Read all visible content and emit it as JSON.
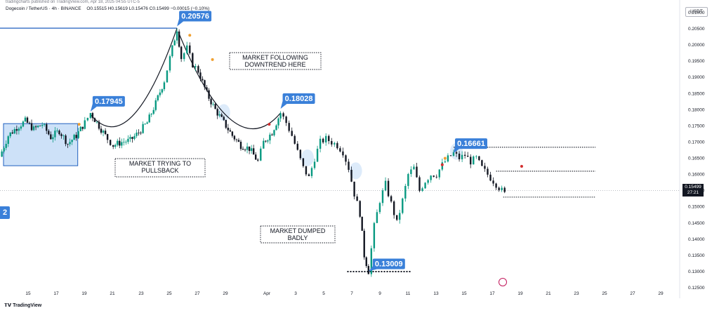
{
  "header": {
    "meta_line": "tradingcharts published on TradingView.com, Apr 18, 2025 04:55 UTC-5",
    "title": "Dogecoin / TetherUS · 4h · BINANCE",
    "ohlc": "O0.15515  H0.15619  L0.15476  C0.15499  −0.00015 (−0.10%)",
    "currency": "USDT"
  },
  "footer": {
    "brand": "TradingView"
  },
  "current_price": {
    "value": "0.15499",
    "countdown": "27:21"
  },
  "left_tag": "2",
  "chart_data": {
    "type": "candlestick",
    "symbol": "Dogecoin / TetherUS",
    "interval": "4h",
    "exchange": "BINANCE",
    "ylim": [
      0.125,
      0.21
    ],
    "y_ticks": [
      "0.21000",
      "0.20500",
      "0.20000",
      "0.19500",
      "0.19000",
      "0.18500",
      "0.18000",
      "0.17500",
      "0.17000",
      "0.16500",
      "0.16000",
      "0.15500",
      "0.15000",
      "0.14500",
      "0.14000",
      "0.13500",
      "0.13000",
      "0.12500"
    ],
    "x_ticks": [
      "15",
      "17",
      "19",
      "21",
      "23",
      "25",
      "27",
      "29",
      "Apr",
      "3",
      "5",
      "7",
      "9",
      "11",
      "13",
      "15",
      "17",
      "19",
      "21",
      "23",
      "25",
      "27",
      "29"
    ],
    "price_path": [
      [
        13.0,
        0.1655
      ],
      [
        13.6,
        0.172
      ],
      [
        14.2,
        0.1745
      ],
      [
        14.8,
        0.1765
      ],
      [
        15.4,
        0.174
      ],
      [
        16.0,
        0.1755
      ],
      [
        16.6,
        0.1715
      ],
      [
        17.2,
        0.1735
      ],
      [
        17.8,
        0.1695
      ],
      [
        18.4,
        0.172
      ],
      [
        19.0,
        0.176
      ],
      [
        19.4,
        0.179
      ],
      [
        20.0,
        0.175
      ],
      [
        20.6,
        0.171
      ],
      [
        21.0,
        0.169
      ],
      [
        21.6,
        0.17
      ],
      [
        22.2,
        0.1705
      ],
      [
        22.8,
        0.173
      ],
      [
        23.4,
        0.176
      ],
      [
        24.0,
        0.182
      ],
      [
        24.6,
        0.189
      ],
      [
        25.0,
        0.196
      ],
      [
        25.5,
        0.205
      ],
      [
        25.8,
        0.196
      ],
      [
        26.2,
        0.199
      ],
      [
        26.6,
        0.194
      ],
      [
        27.0,
        0.192
      ],
      [
        27.6,
        0.185
      ],
      [
        28.2,
        0.18
      ],
      [
        28.8,
        0.176
      ],
      [
        29.4,
        0.172
      ],
      [
        30.0,
        0.169
      ],
      [
        30.6,
        0.168
      ],
      [
        31.2,
        0.164
      ],
      [
        31.6,
        0.17
      ],
      [
        32.2,
        0.173
      ],
      [
        32.8,
        0.179
      ],
      [
        33.2,
        0.176
      ],
      [
        33.6,
        0.172
      ],
      [
        34.0,
        0.167
      ],
      [
        34.4,
        0.162
      ],
      [
        34.8,
        0.159
      ],
      [
        35.2,
        0.165
      ],
      [
        35.6,
        0.17
      ],
      [
        36.0,
        0.171
      ],
      [
        36.4,
        0.17
      ],
      [
        36.8,
        0.169
      ],
      [
        37.2,
        0.167
      ],
      [
        37.6,
        0.162
      ],
      [
        38.0,
        0.154
      ],
      [
        38.4,
        0.148
      ],
      [
        38.7,
        0.135
      ],
      [
        39.0,
        0.1301
      ],
      [
        39.4,
        0.144
      ],
      [
        39.8,
        0.152
      ],
      [
        40.2,
        0.157
      ],
      [
        40.6,
        0.151
      ],
      [
        41.0,
        0.145
      ],
      [
        41.4,
        0.152
      ],
      [
        41.8,
        0.16
      ],
      [
        42.2,
        0.162
      ],
      [
        42.6,
        0.155
      ],
      [
        43.0,
        0.158
      ],
      [
        43.4,
        0.16
      ],
      [
        43.8,
        0.16
      ],
      [
        44.2,
        0.163
      ],
      [
        44.6,
        0.165
      ],
      [
        45.0,
        0.1666
      ],
      [
        45.4,
        0.165
      ],
      [
        45.8,
        0.166
      ],
      [
        46.2,
        0.164
      ],
      [
        46.6,
        0.165
      ],
      [
        47.0,
        0.162
      ],
      [
        47.4,
        0.16
      ],
      [
        47.8,
        0.158
      ],
      [
        48.2,
        0.156
      ],
      [
        48.6,
        0.154
      ],
      [
        49.0,
        0.156
      ],
      [
        49.4,
        0.155
      ],
      [
        49.8,
        0.156
      ],
      [
        50.2,
        0.155
      ]
    ],
    "swing_labels": [
      {
        "day": 19.4,
        "price": 0.17945,
        "text": "0.17945"
      },
      {
        "day": 25.5,
        "price": 0.20576,
        "text": "0.20576"
      },
      {
        "day": 32.8,
        "price": 0.18028,
        "text": "0.18028"
      },
      {
        "day": 39.0,
        "price": 0.13009,
        "text": "0.13009"
      },
      {
        "day": 45.0,
        "price": 0.16661,
        "text": "0.16661"
      }
    ],
    "levels": [
      {
        "price": 0.1684,
        "from": 45.0,
        "to": 55.0
      },
      {
        "price": 0.161,
        "from": 48.0,
        "to": 55.0
      },
      {
        "price": 0.153,
        "from": 48.5,
        "to": 55.0
      },
      {
        "price": 0.13,
        "from": 37.5,
        "to": 42.0
      }
    ],
    "annotations": [
      {
        "text": [
          "MARKET FOLLOWING",
          "DOWNTREND HERE"
        ]
      },
      {
        "text": [
          "MARKET TRYING TO",
          "PULLSBACK"
        ]
      },
      {
        "text": [
          "MARKET DUMPED",
          "BADLY"
        ]
      }
    ],
    "colors": {
      "up": "#089981",
      "down": "#131722",
      "label": "#3a80d9",
      "zone": "#bcd7f5",
      "arc": "#131722"
    }
  }
}
